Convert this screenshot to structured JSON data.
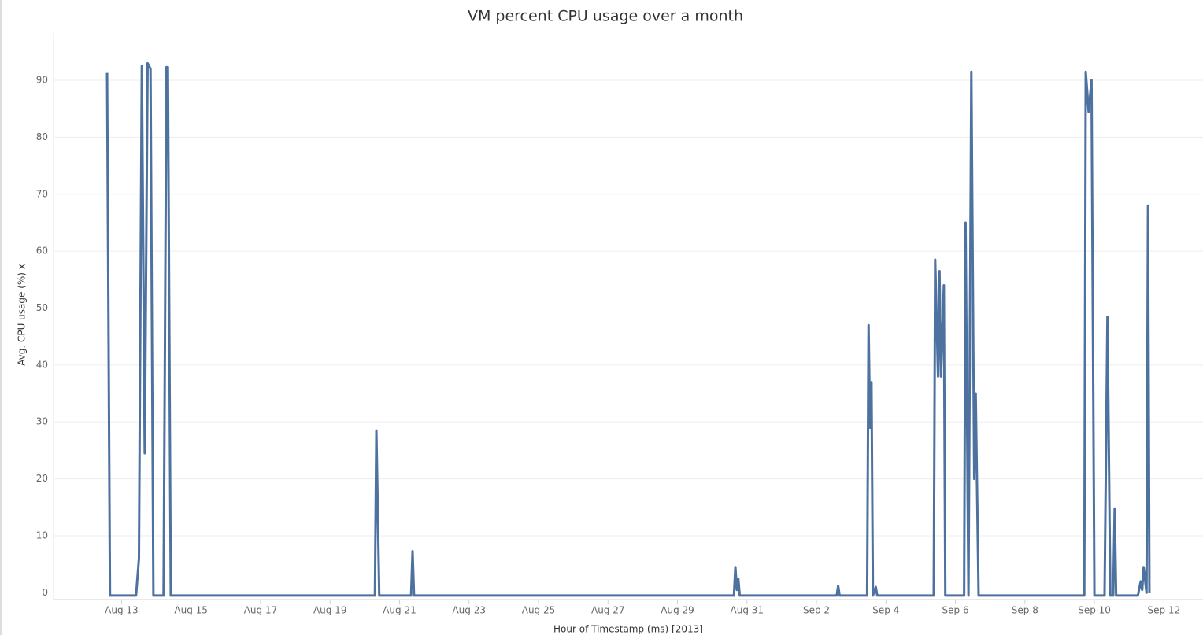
{
  "chart_data": {
    "type": "line",
    "title": "VM percent CPU usage over a month",
    "x_label": "Hour of Timestamp (ms) [2013]",
    "y_label": "Avg. CPU usage (%) x",
    "color": "#4e72a0",
    "grid": true,
    "x": [
      "2013-08-12T14:00",
      "2013-08-12T16:00",
      "2013-08-13T10:00",
      "2013-08-13T12:00",
      "2013-08-13T14:00",
      "2013-08-13T16:00",
      "2013-08-13T18:00",
      "2013-08-13T20:00",
      "2013-08-13T22:00",
      "2013-08-14T05:00",
      "2013-08-14T07:00",
      "2013-08-14T08:00",
      "2013-08-14T10:00",
      "2013-08-20T07:00",
      "2013-08-20T08:00",
      "2013-08-20T10:00",
      "2013-08-21T08:00",
      "2013-08-21T09:00",
      "2013-08-21T10:00",
      "2013-08-30T15:00",
      "2013-08-30T16:00",
      "2013-08-30T17:00",
      "2013-08-30T18:00",
      "2013-08-30T19:00",
      "2013-09-02T14:00",
      "2013-09-02T15:00",
      "2013-09-02T16:00",
      "2013-09-03T11:00",
      "2013-09-03T12:00",
      "2013-09-03T13:00",
      "2013-09-03T14:00",
      "2013-09-03T15:00",
      "2013-09-03T17:00",
      "2013-09-03T18:00",
      "2013-09-05T09:00",
      "2013-09-05T10:00",
      "2013-09-05T12:00",
      "2013-09-05T13:00",
      "2013-09-05T14:00",
      "2013-09-05T16:00",
      "2013-09-05T17:00",
      "2013-09-06T06:00",
      "2013-09-06T07:00",
      "2013-09-06T09:00",
      "2013-09-06T11:00",
      "2013-09-06T13:00",
      "2013-09-06T14:00",
      "2013-09-06T16:00",
      "2013-09-09T17:00",
      "2013-09-09T18:00",
      "2013-09-09T20:00",
      "2013-09-09T22:00",
      "2013-09-10T00:00",
      "2013-09-10T07:00",
      "2013-09-10T09:00",
      "2013-09-10T11:00",
      "2013-09-10T13:00",
      "2013-09-10T14:00",
      "2013-09-10T15:00",
      "2013-09-11T06:00",
      "2013-09-11T08:00",
      "2013-09-11T09:00",
      "2013-09-11T10:00",
      "2013-09-11T12:00",
      "2013-09-11T13:00",
      "2013-09-11T14:00"
    ],
    "values": [
      91.3,
      -0.5,
      -0.5,
      6,
      92.5,
      24.5,
      93,
      92,
      -0.5,
      -0.5,
      92.3,
      92.3,
      -0.5,
      -0.5,
      28.5,
      -0.5,
      -0.5,
      7.3,
      -0.5,
      -0.5,
      4.5,
      0.5,
      2.5,
      -0.5,
      -0.5,
      1.2,
      -0.5,
      -0.5,
      47,
      29,
      37,
      -0.5,
      1,
      -0.5,
      -0.5,
      58.5,
      38,
      56.5,
      38,
      54,
      -0.5,
      -0.5,
      65,
      -0.5,
      91.5,
      20,
      35,
      -0.5,
      -0.5,
      91.5,
      84.5,
      90,
      -0.5,
      -0.5,
      48.5,
      -0.5,
      -0.5,
      14.8,
      -0.5,
      -0.5,
      2,
      0.5,
      4.5,
      0,
      68,
      0
    ],
    "xlim": [
      "2013-08-11T01:00",
      "2013-09-13T03:00"
    ],
    "xticks": [
      {
        "value": "2013-08-13",
        "label": "Aug 13"
      },
      {
        "value": "2013-08-15",
        "label": "Aug 15"
      },
      {
        "value": "2013-08-17",
        "label": "Aug 17"
      },
      {
        "value": "2013-08-19",
        "label": "Aug 19"
      },
      {
        "value": "2013-08-21",
        "label": "Aug 21"
      },
      {
        "value": "2013-08-23",
        "label": "Aug 23"
      },
      {
        "value": "2013-08-25",
        "label": "Aug 25"
      },
      {
        "value": "2013-08-27",
        "label": "Aug 27"
      },
      {
        "value": "2013-08-29",
        "label": "Aug 29"
      },
      {
        "value": "2013-08-31",
        "label": "Aug 31"
      },
      {
        "value": "2013-09-02",
        "label": "Sep 2"
      },
      {
        "value": "2013-09-04",
        "label": "Sep 4"
      },
      {
        "value": "2013-09-06",
        "label": "Sep 6"
      },
      {
        "value": "2013-09-08",
        "label": "Sep 8"
      },
      {
        "value": "2013-09-10",
        "label": "Sep 10"
      },
      {
        "value": "2013-09-12",
        "label": "Sep 12"
      }
    ],
    "ylim": [
      -1.2,
      98.3
    ],
    "yticks": [
      0,
      10,
      20,
      30,
      40,
      50,
      60,
      70,
      80,
      90
    ]
  }
}
